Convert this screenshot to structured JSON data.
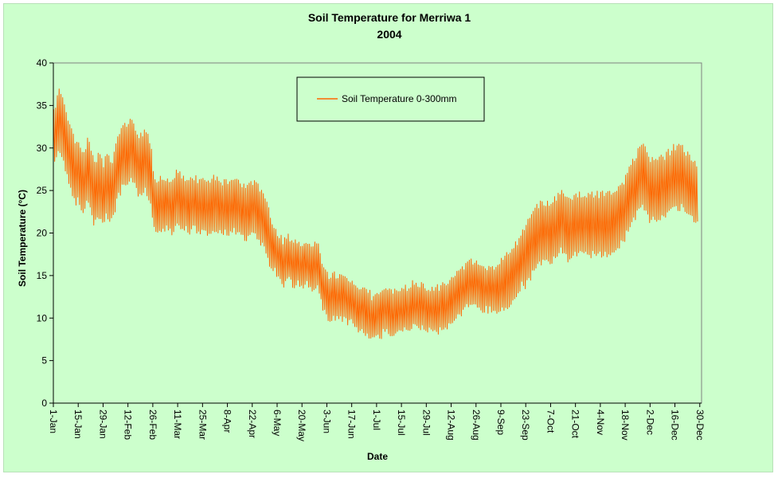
{
  "chart_data": {
    "type": "line",
    "title": "Soil Temperature for Merriwa 1",
    "subtitle": "2004",
    "xlabel": "Date",
    "ylabel": "Soil Temperature (°C)",
    "ylim": [
      0,
      40
    ],
    "y_ticks": [
      0,
      5,
      10,
      15,
      20,
      25,
      30,
      35,
      40
    ],
    "x_ticks": [
      "1-Jan",
      "15-Jan",
      "29-Jan",
      "12-Feb",
      "26-Feb",
      "11-Mar",
      "25-Mar",
      "8-Apr",
      "22-Apr",
      "6-May",
      "20-May",
      "3-Jun",
      "17-Jun",
      "1-Jul",
      "15-Jul",
      "29-Jul",
      "12-Aug",
      "26-Aug",
      "9-Sep",
      "23-Sep",
      "7-Oct",
      "21-Oct",
      "4-Nov",
      "18-Nov",
      "2-Dec",
      "16-Dec",
      "30-Dec"
    ],
    "x_tick_days": [
      0,
      14,
      28,
      42,
      56,
      70,
      84,
      98,
      112,
      126,
      140,
      154,
      168,
      182,
      196,
      210,
      224,
      238,
      252,
      266,
      280,
      294,
      308,
      322,
      336,
      350,
      364
    ],
    "x_range_days": [
      0,
      365
    ],
    "grid": false,
    "legend_position": "top-center",
    "series": [
      {
        "name": "Soil Temperature  0-300mm",
        "color": "#ff6600",
        "daily_mean": [
          31.0,
          31.5,
          32.5,
          33.0,
          33.0,
          32.5,
          32.0,
          31.0,
          30.0,
          29.0,
          28.5,
          28.0,
          27.5,
          27.0,
          27.5,
          27.0,
          26.5,
          26.0,
          26.5,
          27.5,
          27.5,
          26.5,
          25.5,
          24.5,
          25.0,
          25.5,
          25.5,
          25.0,
          24.5,
          25.0,
          25.5,
          25.5,
          25.0,
          25.0,
          25.5,
          26.5,
          27.5,
          28.0,
          28.5,
          29.0,
          29.5,
          29.0,
          29.0,
          29.5,
          30.0,
          29.5,
          29.0,
          28.5,
          28.0,
          28.0,
          28.0,
          28.5,
          28.5,
          28.0,
          27.5,
          27.0,
          24.5,
          23.5,
          23.0,
          23.0,
          23.5,
          23.5,
          23.0,
          23.5,
          23.5,
          23.5,
          23.0,
          23.0,
          23.5,
          24.0,
          24.5,
          24.0,
          23.5,
          23.5,
          23.5,
          23.5,
          23.0,
          23.0,
          23.5,
          23.5,
          23.5,
          23.0,
          23.0,
          23.0,
          23.0,
          23.0,
          23.0,
          23.0,
          23.0,
          23.0,
          23.5,
          23.5,
          23.5,
          23.0,
          23.0,
          23.0,
          23.0,
          23.0,
          23.0,
          23.0,
          23.0,
          23.0,
          23.5,
          23.0,
          23.0,
          23.0,
          22.5,
          22.5,
          22.5,
          22.5,
          22.5,
          22.5,
          23.0,
          23.0,
          23.0,
          22.5,
          22.0,
          22.0,
          21.5,
          21.0,
          20.5,
          20.0,
          19.0,
          18.5,
          18.0,
          18.0,
          17.5,
          17.0,
          17.0,
          16.5,
          16.5,
          17.0,
          17.0,
          17.0,
          16.5,
          16.5,
          16.5,
          16.5,
          16.5,
          16.0,
          16.0,
          16.5,
          16.5,
          16.5,
          16.0,
          16.0,
          16.0,
          16.0,
          16.0,
          16.0,
          15.5,
          14.0,
          13.5,
          13.0,
          13.0,
          12.5,
          12.5,
          12.5,
          12.5,
          12.5,
          12.5,
          12.5,
          12.5,
          12.5,
          12.5,
          12.0,
          12.0,
          12.0,
          12.0,
          11.5,
          11.5,
          11.0,
          11.0,
          11.0,
          11.0,
          11.0,
          10.5,
          10.5,
          10.5,
          10.0,
          10.0,
          10.0,
          10.5,
          10.5,
          10.5,
          10.5,
          11.0,
          11.0,
          11.0,
          11.0,
          10.5,
          10.5,
          10.5,
          10.5,
          11.0,
          11.0,
          11.0,
          11.0,
          11.0,
          11.0,
          11.0,
          11.0,
          11.5,
          11.5,
          11.5,
          11.5,
          11.5,
          11.5,
          11.5,
          11.5,
          11.0,
          11.0,
          11.0,
          11.0,
          11.0,
          11.0,
          11.0,
          11.0,
          11.5,
          11.5,
          11.5,
          11.5,
          11.5,
          12.0,
          12.0,
          12.5,
          12.5,
          12.5,
          13.0,
          13.0,
          13.0,
          13.5,
          13.5,
          14.0,
          14.0,
          14.0,
          14.0,
          14.0,
          14.0,
          14.0,
          14.0,
          13.5,
          13.5,
          13.5,
          13.5,
          13.5,
          13.5,
          13.5,
          13.5,
          13.5,
          13.5,
          13.5,
          14.0,
          14.0,
          14.0,
          14.5,
          14.5,
          14.5,
          15.0,
          15.0,
          15.5,
          16.0,
          16.0,
          16.5,
          17.0,
          17.0,
          17.5,
          18.0,
          18.0,
          18.5,
          19.0,
          19.0,
          19.5,
          19.5,
          20.0,
          20.0,
          20.0,
          20.0,
          20.0,
          20.0,
          20.0,
          20.5,
          20.5,
          20.5,
          21.0,
          21.0,
          21.5,
          21.5,
          21.0,
          20.5,
          20.5,
          20.5,
          20.5,
          20.5,
          21.0,
          21.0,
          21.0,
          21.0,
          21.0,
          21.0,
          21.0,
          21.0,
          21.0,
          21.0,
          21.0,
          21.0,
          21.0,
          21.0,
          21.0,
          21.0,
          21.0,
          21.0,
          21.0,
          21.0,
          21.0,
          21.5,
          21.5,
          21.5,
          22.0,
          22.0,
          22.5,
          22.5,
          23.0,
          23.5,
          24.0,
          24.5,
          25.0,
          25.0,
          25.5,
          26.0,
          26.5,
          27.0,
          27.0,
          26.5,
          26.0,
          25.5,
          25.0,
          25.0,
          25.0,
          25.0,
          25.0,
          25.0,
          25.5,
          25.5,
          25.5,
          25.5,
          26.0,
          26.0,
          26.0,
          26.5,
          26.5,
          26.5,
          26.5,
          26.5,
          26.5,
          26.5,
          26.0,
          26.0,
          25.5,
          25.5,
          25.0,
          25.0,
          24.5
        ],
        "daily_range": [
          3.0,
          3.0,
          3.5,
          3.5,
          3.5,
          3.5,
          3.5,
          3.5,
          3.5,
          3.5,
          3.5,
          3.5,
          3.5,
          3.5,
          3.5,
          3.5,
          3.5,
          3.5,
          3.5,
          3.5,
          3.5,
          3.5,
          3.5,
          3.5,
          3.5,
          3.5,
          3.5,
          3.5,
          3.5,
          3.5,
          3.5,
          3.5,
          3.5,
          3.5,
          3.5,
          3.5,
          3.5,
          3.5,
          3.5,
          3.5,
          3.5,
          3.5,
          3.5,
          3.5,
          3.5,
          3.5,
          3.5,
          3.5,
          3.5,
          3.5,
          3.5,
          3.5,
          3.5,
          3.5,
          3.5,
          3.5,
          3.0,
          3.0,
          3.0,
          3.0,
          3.0,
          3.0,
          3.0,
          3.0,
          3.0,
          3.0,
          3.0,
          3.0,
          3.0,
          3.0,
          3.0,
          3.0,
          3.0,
          3.0,
          3.0,
          3.0,
          3.0,
          3.0,
          3.0,
          3.0,
          3.0,
          3.0,
          3.0,
          3.0,
          3.0,
          3.0,
          3.0,
          3.0,
          3.0,
          3.0,
          3.0,
          3.0,
          3.0,
          3.0,
          3.0,
          3.0,
          3.0,
          3.0,
          3.0,
          3.0,
          3.0,
          3.0,
          3.0,
          3.0,
          3.0,
          3.0,
          3.0,
          3.0,
          3.0,
          3.0,
          3.0,
          3.0,
          3.0,
          3.0,
          3.0,
          3.0,
          3.0,
          3.0,
          3.0,
          3.0,
          3.0,
          3.0,
          2.5,
          2.5,
          2.5,
          2.5,
          2.5,
          2.5,
          2.5,
          2.5,
          2.5,
          2.5,
          2.5,
          2.5,
          2.5,
          2.5,
          2.5,
          2.5,
          2.5,
          2.5,
          2.5,
          2.5,
          2.5,
          2.5,
          2.5,
          2.5,
          2.5,
          2.5,
          2.5,
          2.5,
          2.5,
          2.5,
          2.5,
          2.5,
          2.5,
          2.5,
          2.5,
          2.5,
          2.5,
          2.5,
          2.5,
          2.5,
          2.5,
          2.5,
          2.5,
          2.5,
          2.5,
          2.5,
          2.5,
          2.5,
          2.5,
          2.5,
          2.5,
          2.5,
          2.5,
          2.5,
          2.5,
          2.5,
          2.5,
          2.5,
          2.5,
          2.5,
          2.5,
          2.5,
          2.5,
          2.5,
          2.5,
          2.5,
          2.5,
          2.5,
          2.5,
          2.5,
          2.5,
          2.5,
          2.5,
          2.5,
          2.5,
          2.5,
          2.5,
          2.5,
          2.5,
          2.5,
          2.5,
          2.5,
          2.5,
          2.5,
          2.5,
          2.5,
          2.5,
          2.5,
          2.5,
          2.5,
          2.5,
          2.5,
          2.5,
          2.5,
          2.5,
          2.5,
          2.5,
          2.5,
          2.5,
          2.5,
          2.5,
          2.5,
          2.5,
          2.5,
          2.5,
          2.5,
          2.5,
          2.5,
          2.5,
          2.5,
          2.5,
          2.5,
          2.5,
          2.5,
          2.5,
          2.5,
          2.5,
          2.5,
          2.5,
          2.5,
          2.5,
          2.5,
          2.5,
          2.5,
          2.5,
          2.5,
          2.5,
          2.5,
          3.0,
          3.0,
          3.0,
          3.0,
          3.0,
          3.0,
          3.0,
          3.0,
          3.0,
          3.0,
          3.0,
          3.0,
          3.0,
          3.0,
          3.0,
          3.5,
          3.5,
          3.5,
          3.5,
          3.5,
          3.5,
          3.5,
          3.5,
          3.5,
          3.5,
          3.5,
          3.5,
          3.5,
          3.5,
          3.5,
          3.5,
          3.5,
          3.5,
          3.5,
          3.5,
          3.5,
          3.5,
          3.5,
          3.5,
          3.5,
          3.5,
          3.5,
          3.5,
          3.5,
          3.5,
          3.5,
          3.5,
          3.5,
          3.5,
          3.5,
          3.5,
          3.5,
          3.5,
          3.5,
          3.5,
          3.5,
          3.5,
          3.5,
          3.5,
          3.5,
          3.5,
          3.5,
          3.5,
          3.5,
          3.5,
          3.5,
          3.5,
          3.5,
          3.5,
          3.5,
          3.5,
          3.5,
          3.5,
          3.5,
          3.5,
          3.5,
          3.5,
          3.5,
          3.5,
          3.5,
          3.5,
          3.5,
          3.5,
          3.5,
          3.5,
          3.5,
          3.5,
          3.5,
          3.5,
          3.5,
          3.5,
          3.5,
          3.5,
          3.5,
          3.5,
          3.5,
          3.5,
          3.5,
          3.5,
          3.5,
          3.5,
          3.5,
          3.5,
          3.5,
          3.5,
          3.5,
          3.5,
          3.5,
          3.5,
          3.5,
          3.5,
          3.5,
          3.5,
          3.5,
          3.5,
          3.5
        ]
      }
    ]
  }
}
